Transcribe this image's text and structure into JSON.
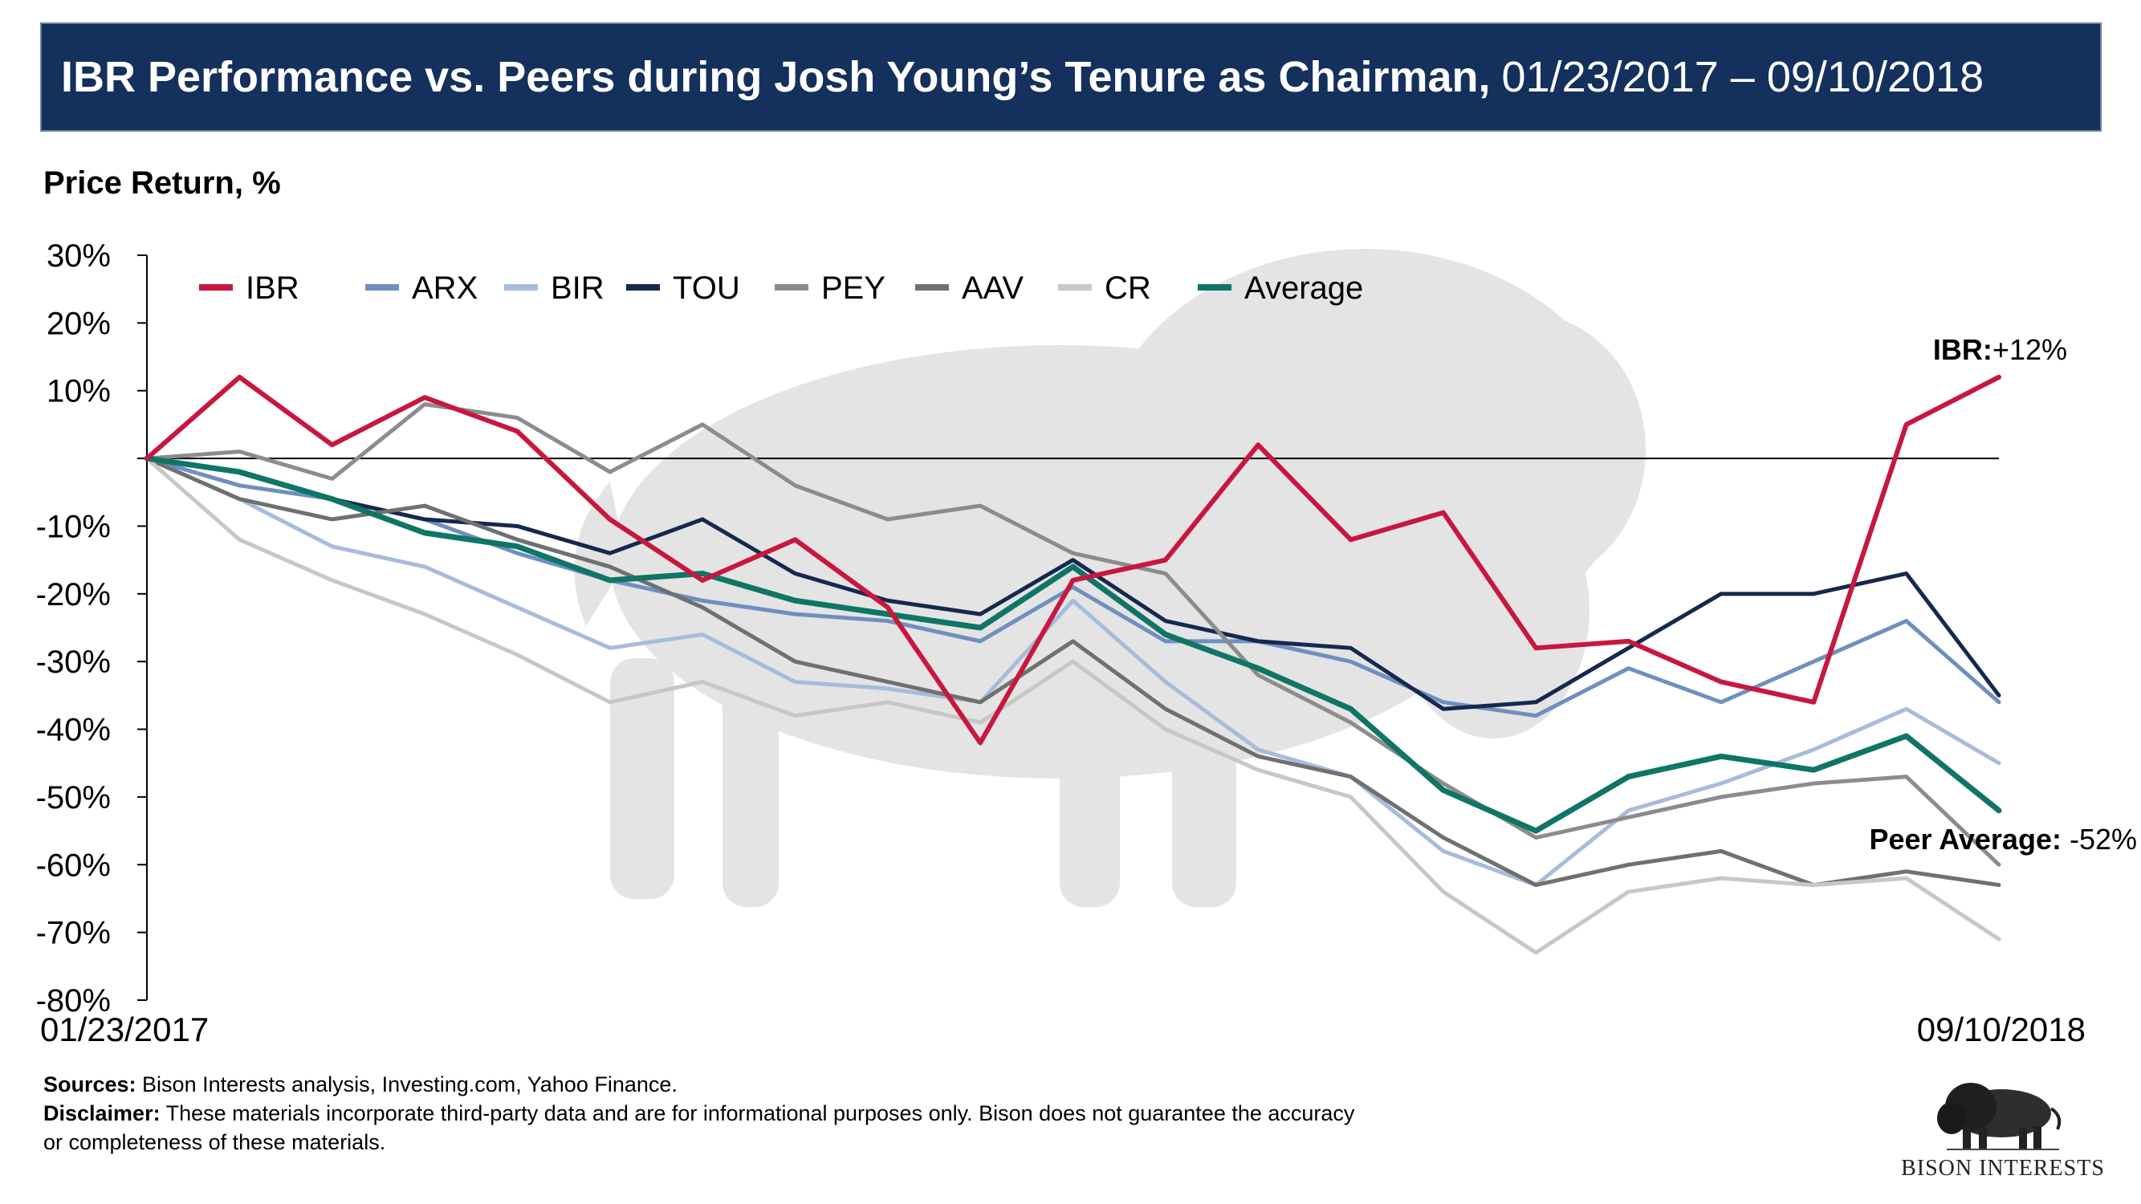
{
  "title": {
    "main": "IBR Performance vs. Peers during Josh Young’s Tenure as Chairman,",
    "dates": "01/23/2017 – 09/10/2018"
  },
  "subtitle": "Price Return, %",
  "chart_data": {
    "type": "line",
    "ylabel": "Price Return, %",
    "ylim": [
      -80,
      30
    ],
    "yticks": [
      "30%",
      "20%",
      "10%",
      "",
      "-10%",
      "-20%",
      "-30%",
      "-40%",
      "-50%",
      "-60%",
      "-70%",
      "-80%"
    ],
    "x_start_label": "01/23/2017",
    "x_end_label": "09/10/2018",
    "x_index": [
      0,
      5,
      10,
      15,
      20,
      25,
      30,
      35,
      40,
      45,
      50,
      55,
      60,
      65,
      70,
      75,
      80,
      85,
      90,
      95,
      100
    ],
    "legend_position": "top-left",
    "series": [
      {
        "name": "IBR",
        "color": "#c8173f",
        "width": 6,
        "values": [
          0,
          12,
          2,
          9,
          4,
          -9,
          -18,
          -12,
          -22,
          -42,
          -18,
          -15,
          2,
          -12,
          -8,
          -28,
          -27,
          -33,
          -36,
          5,
          12
        ]
      },
      {
        "name": "ARX",
        "color": "#6f8fbf",
        "width": 5,
        "values": [
          0,
          -4,
          -6,
          -9,
          -14,
          -18,
          -21,
          -23,
          -24,
          -27,
          -19,
          -27,
          -27,
          -30,
          -36,
          -38,
          -31,
          -36,
          -30,
          -24,
          -36
        ]
      },
      {
        "name": "BIR",
        "color": "#a7bcdb",
        "width": 5,
        "values": [
          0,
          -6,
          -13,
          -16,
          -22,
          -28,
          -26,
          -33,
          -34,
          -36,
          -21,
          -33,
          -43,
          -47,
          -58,
          -63,
          -52,
          -48,
          -43,
          -37,
          -45
        ]
      },
      {
        "name": "TOU",
        "color": "#15284f",
        "width": 5,
        "values": [
          0,
          -2,
          -6,
          -9,
          -10,
          -14,
          -9,
          -17,
          -21,
          -23,
          -15,
          -24,
          -27,
          -28,
          -37,
          -36,
          -28,
          -20,
          -20,
          -17,
          -35
        ]
      },
      {
        "name": "PEY",
        "color": "#8c8c8c",
        "width": 5,
        "values": [
          0,
          1,
          -3,
          8,
          6,
          -2,
          5,
          -4,
          -9,
          -7,
          -14,
          -17,
          -32,
          -39,
          -48,
          -56,
          -53,
          -50,
          -48,
          -47,
          -60
        ]
      },
      {
        "name": "AAV",
        "color": "#707070",
        "width": 5,
        "values": [
          0,
          -6,
          -9,
          -7,
          -12,
          -16,
          -22,
          -30,
          -33,
          -36,
          -27,
          -37,
          -44,
          -47,
          -56,
          -63,
          -60,
          -58,
          -63,
          -61,
          -63
        ]
      },
      {
        "name": "CR",
        "color": "#c7c7c7",
        "width": 5,
        "values": [
          0,
          -12,
          -18,
          -23,
          -29,
          -36,
          -33,
          -38,
          -36,
          -39,
          -30,
          -40,
          -46,
          -50,
          -64,
          -73,
          -64,
          -62,
          -63,
          -62,
          -71
        ]
      },
      {
        "name": "Average",
        "color": "#0f7566",
        "width": 7,
        "values": [
          0,
          -2,
          -6,
          -11,
          -13,
          -18,
          -17,
          -21,
          -23,
          -25,
          -16,
          -26,
          -31,
          -37,
          -49,
          -55,
          -47,
          -44,
          -46,
          -41,
          -52
        ]
      }
    ],
    "annotations": [
      {
        "label": "IBR:",
        "value": "+12%"
      },
      {
        "label": "Peer Average:",
        "value": "-52%"
      }
    ]
  },
  "footer": {
    "sources_label": "Sources:",
    "sources_text": " Bison Interests analysis, Investing.com, Yahoo Finance.",
    "disclaimer_label": "Disclaimer:",
    "disclaimer_text": " These materials incorporate third-party data and are for informational purposes only. Bison does not guarantee the accuracy or completeness of these materials."
  },
  "logo": {
    "text": "BISON INTERESTS"
  }
}
